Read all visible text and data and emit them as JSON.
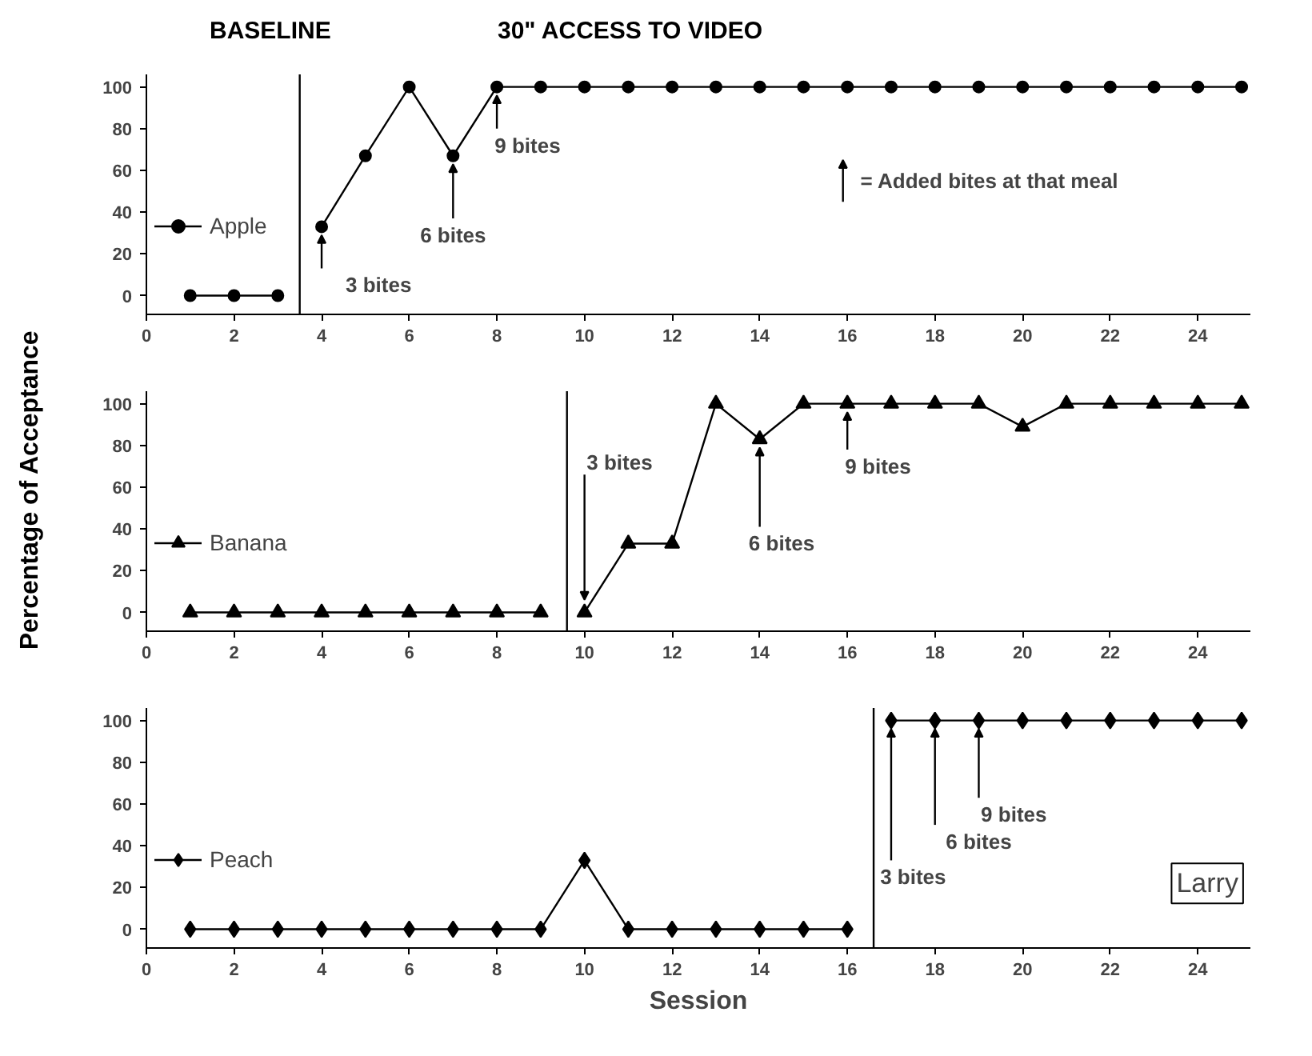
{
  "chart_data": [
    {
      "type": "line",
      "xlim": [
        0,
        25.2
      ],
      "ylim": [
        -9,
        106
      ],
      "xticks": [
        0,
        2,
        4,
        6,
        8,
        10,
        12,
        14,
        16,
        18,
        20,
        22,
        24
      ],
      "yticks": [
        0,
        20,
        40,
        60,
        80,
        100
      ],
      "grid": false,
      "legend": "left",
      "line_style": "solid",
      "series": [
        {
          "name": "Apple",
          "color": "#000000",
          "marker": "circle",
          "x": [
            1,
            2,
            3
          ],
          "values": [
            0,
            0,
            0
          ]
        },
        {
          "color": "#000000",
          "marker": "circle",
          "x": [
            4,
            5,
            6,
            7,
            8,
            9,
            10,
            11,
            12,
            13,
            14,
            15,
            16,
            17,
            18,
            19,
            20,
            21,
            22,
            23,
            24,
            25
          ],
          "values": [
            33,
            67,
            100,
            67,
            100,
            100,
            100,
            100,
            100,
            100,
            100,
            100,
            100,
            100,
            100,
            100,
            100,
            100,
            100,
            100,
            100,
            100
          ]
        }
      ],
      "ref_lines": [
        {
          "axis": "x",
          "value": 3.5,
          "color": "#000000"
        }
      ],
      "annotations": [
        "BASELINE",
        "30\" ACCESS TO VIDEO",
        "= Added bites at that meal",
        {
          "text": "3 bites",
          "x": 4,
          "y": 33
        },
        {
          "text": "6 bites",
          "x": 7,
          "y": 67
        },
        {
          "text": "9 bites",
          "x": 8,
          "y": 100
        }
      ]
    },
    {
      "type": "line",
      "xlim": [
        0,
        25.2
      ],
      "ylim": [
        -9,
        106
      ],
      "xticks": [
        0,
        2,
        4,
        6,
        8,
        10,
        12,
        14,
        16,
        18,
        20,
        22,
        24
      ],
      "yticks": [
        0,
        20,
        40,
        60,
        80,
        100
      ],
      "grid": false,
      "legend": "left",
      "line_style": "solid",
      "ylabel": "Percentage of Acceptance",
      "series": [
        {
          "name": "Banana",
          "color": "#000000",
          "marker": "triangle",
          "x": [
            1,
            2,
            3,
            4,
            5,
            6,
            7,
            8,
            9
          ],
          "values": [
            0,
            0,
            0,
            0,
            0,
            0,
            0,
            0,
            0
          ]
        },
        {
          "color": "#000000",
          "marker": "triangle",
          "x": [
            10,
            11,
            12,
            13,
            14,
            15,
            16,
            17,
            18,
            19,
            20,
            21,
            22,
            23,
            24,
            25
          ],
          "values": [
            0,
            33,
            33,
            100,
            83,
            100,
            100,
            100,
            100,
            100,
            89,
            100,
            100,
            100,
            100,
            100
          ]
        }
      ],
      "ref_lines": [
        {
          "axis": "x",
          "value": 9.6,
          "color": "#000000"
        }
      ],
      "annotations": [
        {
          "text": "3 bites",
          "x": 10,
          "y": 0
        },
        {
          "text": "6 bites",
          "x": 14,
          "y": 83
        },
        {
          "text": "9 bites",
          "x": 16,
          "y": 100
        }
      ]
    },
    {
      "type": "line",
      "xlim": [
        0,
        25.2
      ],
      "ylim": [
        -9,
        106
      ],
      "xticks": [
        0,
        2,
        4,
        6,
        8,
        10,
        12,
        14,
        16,
        18,
        20,
        22,
        24
      ],
      "yticks": [
        0,
        20,
        40,
        60,
        80,
        100
      ],
      "grid": false,
      "legend": "left",
      "line_style": "solid",
      "xlabel": "Session",
      "series": [
        {
          "name": "Peach",
          "color": "#000000",
          "marker": "diamond",
          "x": [
            1,
            2,
            3,
            4,
            5,
            6,
            7,
            8,
            9,
            10,
            11,
            12,
            13,
            14,
            15,
            16
          ],
          "values": [
            0,
            0,
            0,
            0,
            0,
            0,
            0,
            0,
            0,
            33,
            0,
            0,
            0,
            0,
            0,
            0
          ]
        },
        {
          "color": "#000000",
          "marker": "diamond",
          "x": [
            17,
            18,
            19,
            20,
            21,
            22,
            23,
            24,
            25
          ],
          "values": [
            100,
            100,
            100,
            100,
            100,
            100,
            100,
            100,
            100
          ]
        }
      ],
      "ref_lines": [
        {
          "axis": "x",
          "value": 16.6,
          "color": "#000000"
        }
      ],
      "annotations": [
        "Larry",
        {
          "text": "3 bites",
          "x": 17,
          "y": 100
        },
        {
          "text": "6 bites",
          "x": 18,
          "y": 100
        },
        {
          "text": "9 bites",
          "x": 19,
          "y": 100
        }
      ]
    }
  ]
}
